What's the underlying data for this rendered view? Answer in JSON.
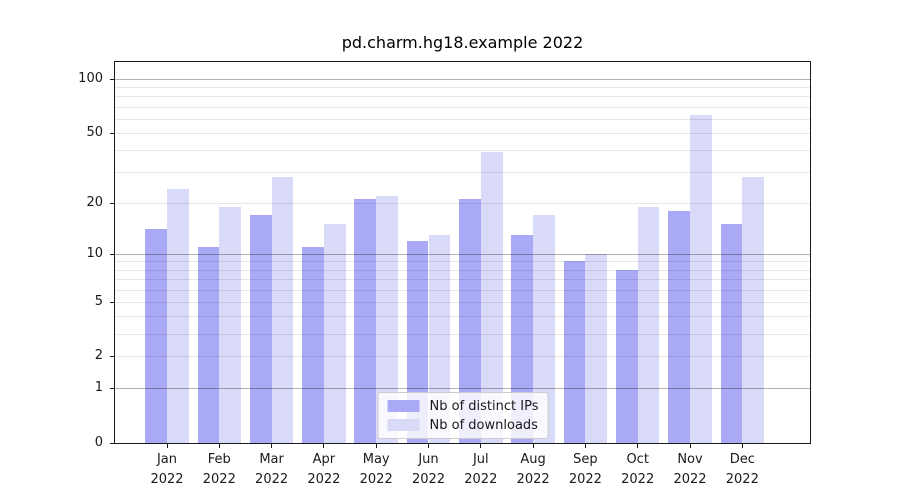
{
  "chart_data": {
    "type": "bar",
    "title": "pd.charm.hg18.example 2022",
    "categories": [
      "Jan\n2022",
      "Feb\n2022",
      "Mar\n2022",
      "Apr\n2022",
      "May\n2022",
      "Jun\n2022",
      "Jul\n2022",
      "Aug\n2022",
      "Sep\n2022",
      "Oct\n2022",
      "Nov\n2022",
      "Dec\n2022"
    ],
    "series": [
      {
        "name": "Nb of distinct IPs",
        "color": "#a9a9f5",
        "values": [
          14,
          11,
          17,
          11,
          21,
          12,
          21,
          13,
          9,
          8,
          18,
          15
        ]
      },
      {
        "name": "Nb of downloads",
        "color": "#d9d9f8",
        "values": [
          24,
          19,
          28,
          15,
          22,
          13,
          39,
          17,
          10,
          19,
          63,
          28
        ]
      }
    ],
    "yscale": "log1p",
    "yticks": [
      0,
      1,
      2,
      5,
      10,
      20,
      50,
      100
    ],
    "ylim": [
      0,
      124
    ],
    "grid": "horizontal major and minor",
    "legend_position": "lower center"
  }
}
